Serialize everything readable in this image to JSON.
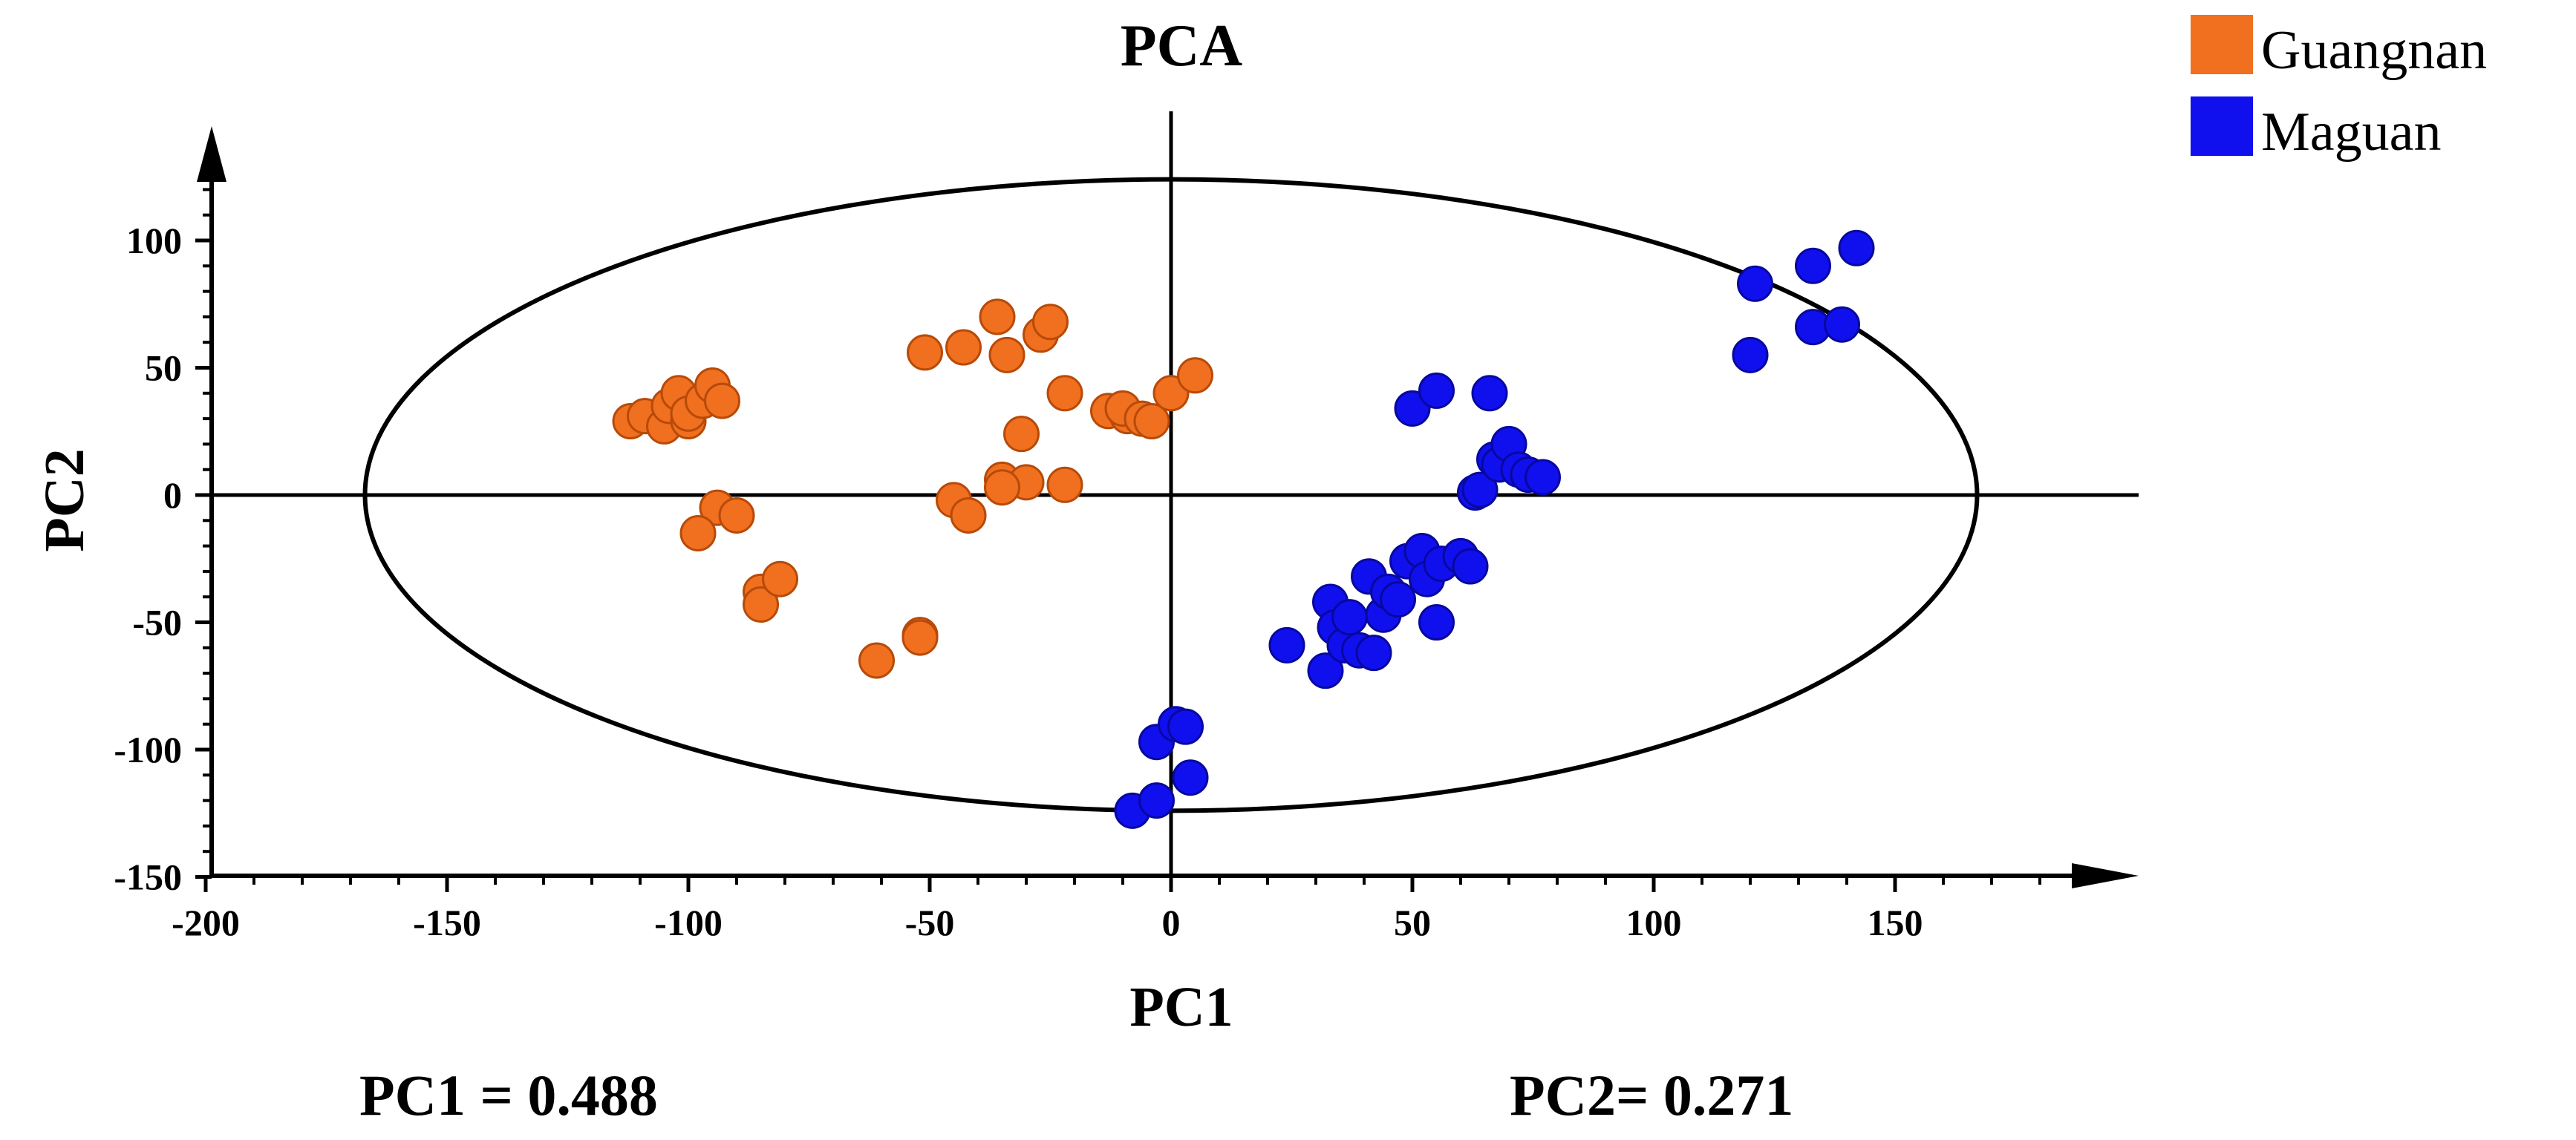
{
  "chart_data": {
    "type": "scatter",
    "title": "PCA",
    "xlabel": "PC1",
    "ylabel": "PC2",
    "xlim": [
      -200,
      200
    ],
    "ylim": [
      -150,
      150
    ],
    "xticks": [
      -200,
      -150,
      -100,
      -50,
      0,
      50,
      100,
      150
    ],
    "yticks": [
      -150,
      -100,
      -50,
      0,
      50,
      100
    ],
    "ellipse": {
      "cx": 0,
      "cy": 0,
      "rx": 167,
      "ry": 124
    },
    "legend": {
      "position": "top-right"
    },
    "variance_labels": {
      "pc1": "PC1 = 0.488",
      "pc2": "PC2= 0.271"
    },
    "series": [
      {
        "name": "Guangnan",
        "color": "#F07020",
        "edge": "#B84A08",
        "points": [
          [
            -112,
            29
          ],
          [
            -109,
            31
          ],
          [
            -105,
            27
          ],
          [
            -104,
            35
          ],
          [
            -102,
            40
          ],
          [
            -100,
            29
          ],
          [
            -100,
            32
          ],
          [
            -97,
            37
          ],
          [
            -95,
            43
          ],
          [
            -93,
            37
          ],
          [
            -94,
            -5
          ],
          [
            -98,
            -15
          ],
          [
            -90,
            -8
          ],
          [
            -85,
            -38
          ],
          [
            -85,
            -43
          ],
          [
            -81,
            -33
          ],
          [
            -61,
            -65
          ],
          [
            -52,
            -55
          ],
          [
            -52,
            -56
          ],
          [
            -51,
            56
          ],
          [
            -43,
            58
          ],
          [
            -36,
            70
          ],
          [
            -34,
            55
          ],
          [
            -27,
            63
          ],
          [
            -25,
            68
          ],
          [
            -22,
            40
          ],
          [
            -31,
            24
          ],
          [
            -35,
            6
          ],
          [
            -30,
            5
          ],
          [
            -22,
            4
          ],
          [
            -35,
            3
          ],
          [
            -45,
            -2
          ],
          [
            -42,
            -8
          ],
          [
            -13,
            33
          ],
          [
            -9,
            31
          ],
          [
            -10,
            34
          ],
          [
            -6,
            30
          ],
          [
            -4,
            29
          ],
          [
            0,
            40
          ],
          [
            5,
            47
          ]
        ]
      },
      {
        "name": "Maguan",
        "color": "#1010EE",
        "edge": "#0808A0",
        "points": [
          [
            -8,
            -124
          ],
          [
            -3,
            -120
          ],
          [
            -3,
            -97
          ],
          [
            1,
            -90
          ],
          [
            3,
            -91
          ],
          [
            4,
            -111
          ],
          [
            24,
            -59
          ],
          [
            32,
            -69
          ],
          [
            33,
            -42
          ],
          [
            34,
            -52
          ],
          [
            36,
            -59
          ],
          [
            37,
            -48
          ],
          [
            39,
            -61
          ],
          [
            41,
            -32
          ],
          [
            42,
            -62
          ],
          [
            44,
            -47
          ],
          [
            45,
            -38
          ],
          [
            47,
            -41
          ],
          [
            49,
            -26
          ],
          [
            52,
            -22
          ],
          [
            53,
            -33
          ],
          [
            55,
            -50
          ],
          [
            56,
            -27
          ],
          [
            60,
            -24
          ],
          [
            62,
            -28
          ],
          [
            63,
            1
          ],
          [
            64,
            2
          ],
          [
            67,
            14
          ],
          [
            68,
            12
          ],
          [
            70,
            20
          ],
          [
            72,
            10
          ],
          [
            74,
            8
          ],
          [
            77,
            7
          ],
          [
            50,
            34
          ],
          [
            55,
            41
          ],
          [
            66,
            40
          ],
          [
            120,
            55
          ],
          [
            121,
            83
          ],
          [
            133,
            90
          ],
          [
            133,
            66
          ],
          [
            139,
            67
          ],
          [
            142,
            97
          ]
        ]
      }
    ]
  }
}
